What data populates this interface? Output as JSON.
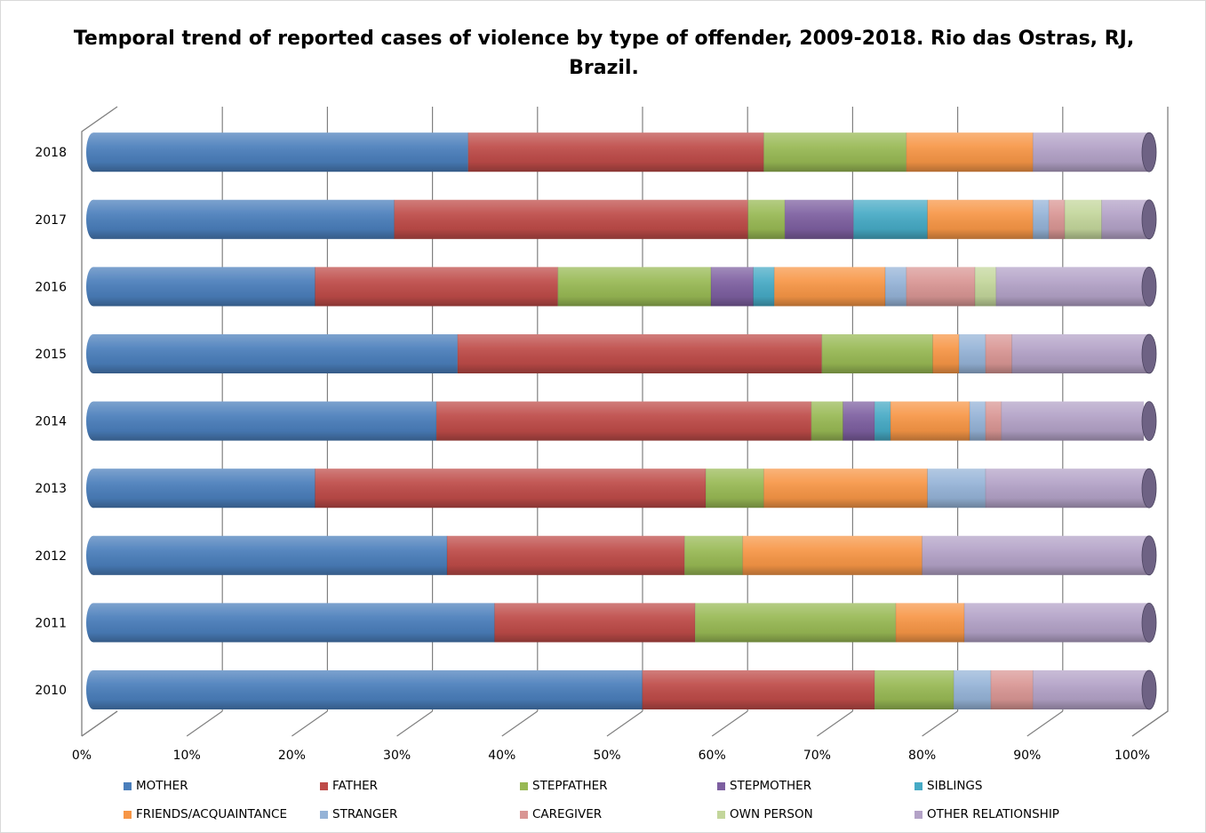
{
  "chart_data": {
    "type": "bar",
    "orientation": "horizontal",
    "stacked": "percent",
    "style": "3d-cylinder",
    "title": "Temporal trend of reported cases of violence by type of offender, 2009-2018. Rio das Ostras, RJ, Brazil.",
    "categories": [
      "2010",
      "2011",
      "2012",
      "2013",
      "2014",
      "2015",
      "2016",
      "2017",
      "2018"
    ],
    "x_ticks": [
      "0%",
      "10%",
      "20%",
      "30%",
      "40%",
      "50%",
      "60%",
      "70%",
      "80%",
      "90%",
      "100%"
    ],
    "xlim": [
      0,
      100
    ],
    "grid": true,
    "legend_position": "bottom",
    "series": [
      {
        "name": "MOTHER",
        "color": "#4a7ebb",
        "values": [
          52,
          38,
          33.5,
          21,
          32.5,
          34.5,
          21,
          28.5,
          35.5
        ]
      },
      {
        "name": "FATHER",
        "color": "#be4b48",
        "values": [
          22,
          19,
          22.5,
          37,
          35.5,
          34.5,
          23,
          33.5,
          28
        ]
      },
      {
        "name": "STEPFATHER",
        "color": "#98b954",
        "values": [
          7.5,
          19,
          5.5,
          5.5,
          3,
          10.5,
          14.5,
          3.5,
          13.5
        ]
      },
      {
        "name": "STEPMOTHER",
        "color": "#7d5fa0",
        "values": [
          0,
          0,
          0,
          0,
          3,
          0,
          4,
          6.5,
          0
        ]
      },
      {
        "name": "SIBLINGS",
        "color": "#46aac5",
        "values": [
          0,
          0,
          0,
          0,
          1.5,
          0,
          2,
          7,
          0
        ]
      },
      {
        "name": "FRIENDS/ACQUAINTANCE",
        "color": "#f79646",
        "values": [
          0,
          6.5,
          17,
          15.5,
          7.5,
          2.5,
          10.5,
          10,
          12
        ]
      },
      {
        "name": "STRANGER",
        "color": "#95b3d7",
        "values": [
          3.5,
          0,
          0,
          5.5,
          1.5,
          2.5,
          2,
          1.5,
          0
        ]
      },
      {
        "name": "CAREGIVER",
        "color": "#d99694",
        "values": [
          4,
          0,
          0,
          0,
          1.5,
          2.5,
          6.5,
          1.5,
          0
        ]
      },
      {
        "name": "OWN PERSON",
        "color": "#c3d69b",
        "values": [
          0,
          0,
          0,
          0,
          0,
          0,
          2,
          3.5,
          0
        ]
      },
      {
        "name": "OTHER RELATIONSHIP",
        "color": "#b3a2c7",
        "values": [
          11,
          17.5,
          21.5,
          15.5,
          13.5,
          13,
          14.5,
          4.5,
          11
        ]
      }
    ]
  }
}
